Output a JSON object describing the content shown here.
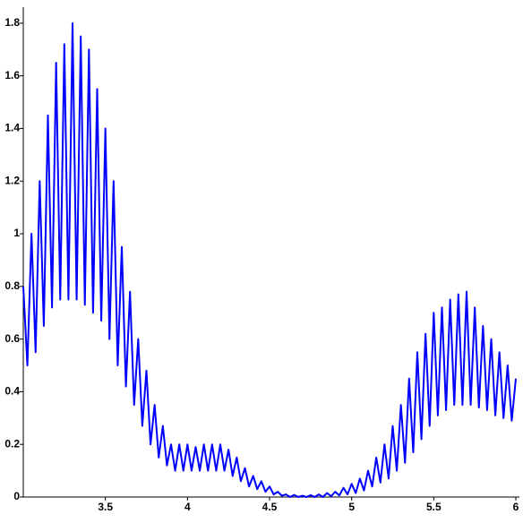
{
  "chart_data": {
    "type": "line",
    "x": [
      3,
      3.025,
      3.05,
      3.075,
      3.1,
      3.125,
      3.15,
      3.175,
      3.2,
      3.225,
      3.25,
      3.275,
      3.3,
      3.325,
      3.35,
      3.375,
      3.4,
      3.425,
      3.45,
      3.475,
      3.5,
      3.525,
      3.55,
      3.575,
      3.6,
      3.625,
      3.65,
      3.675,
      3.7,
      3.725,
      3.75,
      3.775,
      3.8,
      3.825,
      3.85,
      3.875,
      3.9,
      3.925,
      3.95,
      3.975,
      4,
      4.025,
      4.05,
      4.075,
      4.1,
      4.125,
      4.15,
      4.175,
      4.2,
      4.225,
      4.25,
      4.275,
      4.3,
      4.325,
      4.35,
      4.375,
      4.4,
      4.425,
      4.45,
      4.475,
      4.5,
      4.525,
      4.55,
      4.575,
      4.6,
      4.625,
      4.65,
      4.675,
      4.7,
      4.725,
      4.75,
      4.775,
      4.8,
      4.825,
      4.85,
      4.875,
      4.9,
      4.925,
      4.95,
      4.975,
      5,
      5.025,
      5.05,
      5.075,
      5.1,
      5.125,
      5.15,
      5.175,
      5.2,
      5.225,
      5.25,
      5.275,
      5.3,
      5.325,
      5.35,
      5.375,
      5.4,
      5.425,
      5.45,
      5.475,
      5.5,
      5.525,
      5.55,
      5.575,
      5.6,
      5.625,
      5.65,
      5.675,
      5.7,
      5.725,
      5.75,
      5.775,
      5.8,
      5.825,
      5.85,
      5.875,
      5.9,
      5.925,
      5.95,
      5.975,
      6
    ],
    "series": [
      {
        "color": "#0000ff",
        "values": [
          0.8,
          0.5,
          1.0,
          0.55,
          1.2,
          0.65,
          1.45,
          0.72,
          1.65,
          0.75,
          1.72,
          0.75,
          1.8,
          0.75,
          1.75,
          0.73,
          1.7,
          0.7,
          1.55,
          0.67,
          1.4,
          0.6,
          1.2,
          0.5,
          0.95,
          0.42,
          0.78,
          0.35,
          0.6,
          0.27,
          0.48,
          0.2,
          0.35,
          0.15,
          0.27,
          0.12,
          0.2,
          0.1,
          0.2,
          0.1,
          0.2,
          0.1,
          0.19,
          0.1,
          0.2,
          0.1,
          0.2,
          0.1,
          0.2,
          0.1,
          0.18,
          0.08,
          0.15,
          0.06,
          0.11,
          0.04,
          0.08,
          0.03,
          0.06,
          0.02,
          0.04,
          0.01,
          0.02,
          0.005,
          0.01,
          0,
          0.008,
          0,
          0.005,
          0,
          0.007,
          0,
          0.01,
          0,
          0.015,
          0.003,
          0.02,
          0.006,
          0.035,
          0.01,
          0.05,
          0.015,
          0.07,
          0.025,
          0.1,
          0.04,
          0.15,
          0.055,
          0.2,
          0.07,
          0.27,
          0.1,
          0.35,
          0.13,
          0.45,
          0.17,
          0.55,
          0.22,
          0.62,
          0.27,
          0.7,
          0.31,
          0.72,
          0.33,
          0.75,
          0.35,
          0.77,
          0.35,
          0.78,
          0.35,
          0.72,
          0.34,
          0.65,
          0.33,
          0.6,
          0.31,
          0.55,
          0.3,
          0.5,
          0.29,
          0.45
        ]
      }
    ],
    "xlim": [
      3,
      6
    ],
    "xticks": [
      3.5,
      4,
      4.5,
      5,
      5.5,
      6
    ],
    "ylim": [
      0,
      1.82
    ],
    "yticks": [
      0,
      0.2,
      0.4,
      0.6,
      0.8,
      1,
      1.2,
      1.4,
      1.6,
      1.8
    ]
  }
}
